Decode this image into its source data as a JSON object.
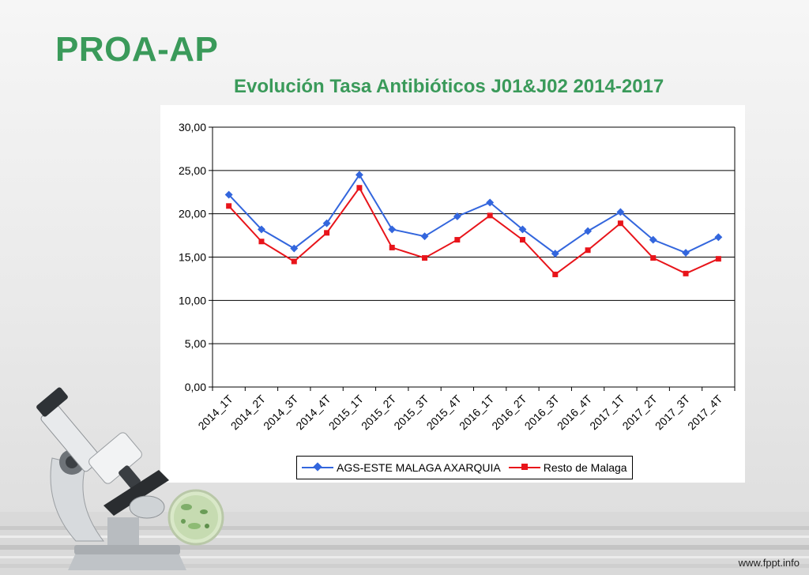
{
  "slide": {
    "title": "PROA-AP",
    "subtitle": "Evolución Tasa Antibióticos J01&J02  2014-2017",
    "footer_brand": "www.fppt.info",
    "accent_color": "#3a9a5a"
  },
  "chart_data": {
    "type": "line",
    "title": "",
    "xlabel": "",
    "ylabel": "",
    "categories": [
      "2014_1T",
      "2014_2T",
      "2014_3T",
      "2014_4T",
      "2015_1T",
      "2015_2T",
      "2015_3T",
      "2015_4T",
      "2016_1T",
      "2016_2T",
      "2016_3T",
      "2016_4T",
      "2017_1T",
      "2017_2T",
      "2017_3T",
      "2017_4T"
    ],
    "ylim": [
      0,
      30
    ],
    "yticks": [
      0,
      5,
      10,
      15,
      20,
      25,
      30
    ],
    "ytick_labels": [
      "0,00",
      "5,00",
      "10,00",
      "15,00",
      "20,00",
      "25,00",
      "30,00"
    ],
    "grid": true,
    "legend_position": "bottom",
    "series": [
      {
        "name": "AGS-ESTE MALAGA AXARQUIA",
        "color": "#3366dd",
        "marker": "diamond",
        "values": [
          22.2,
          18.2,
          16.0,
          18.9,
          24.5,
          18.2,
          17.4,
          19.7,
          21.3,
          18.2,
          15.4,
          18.0,
          20.2,
          17.0,
          15.5,
          17.3
        ]
      },
      {
        "name": "Resto de Malaga",
        "color": "#e8141a",
        "marker": "square",
        "values": [
          20.9,
          16.8,
          14.5,
          17.8,
          23.0,
          16.1,
          14.9,
          17.0,
          19.8,
          17.0,
          13.0,
          15.8,
          18.9,
          14.9,
          13.1,
          14.8
        ]
      }
    ]
  }
}
